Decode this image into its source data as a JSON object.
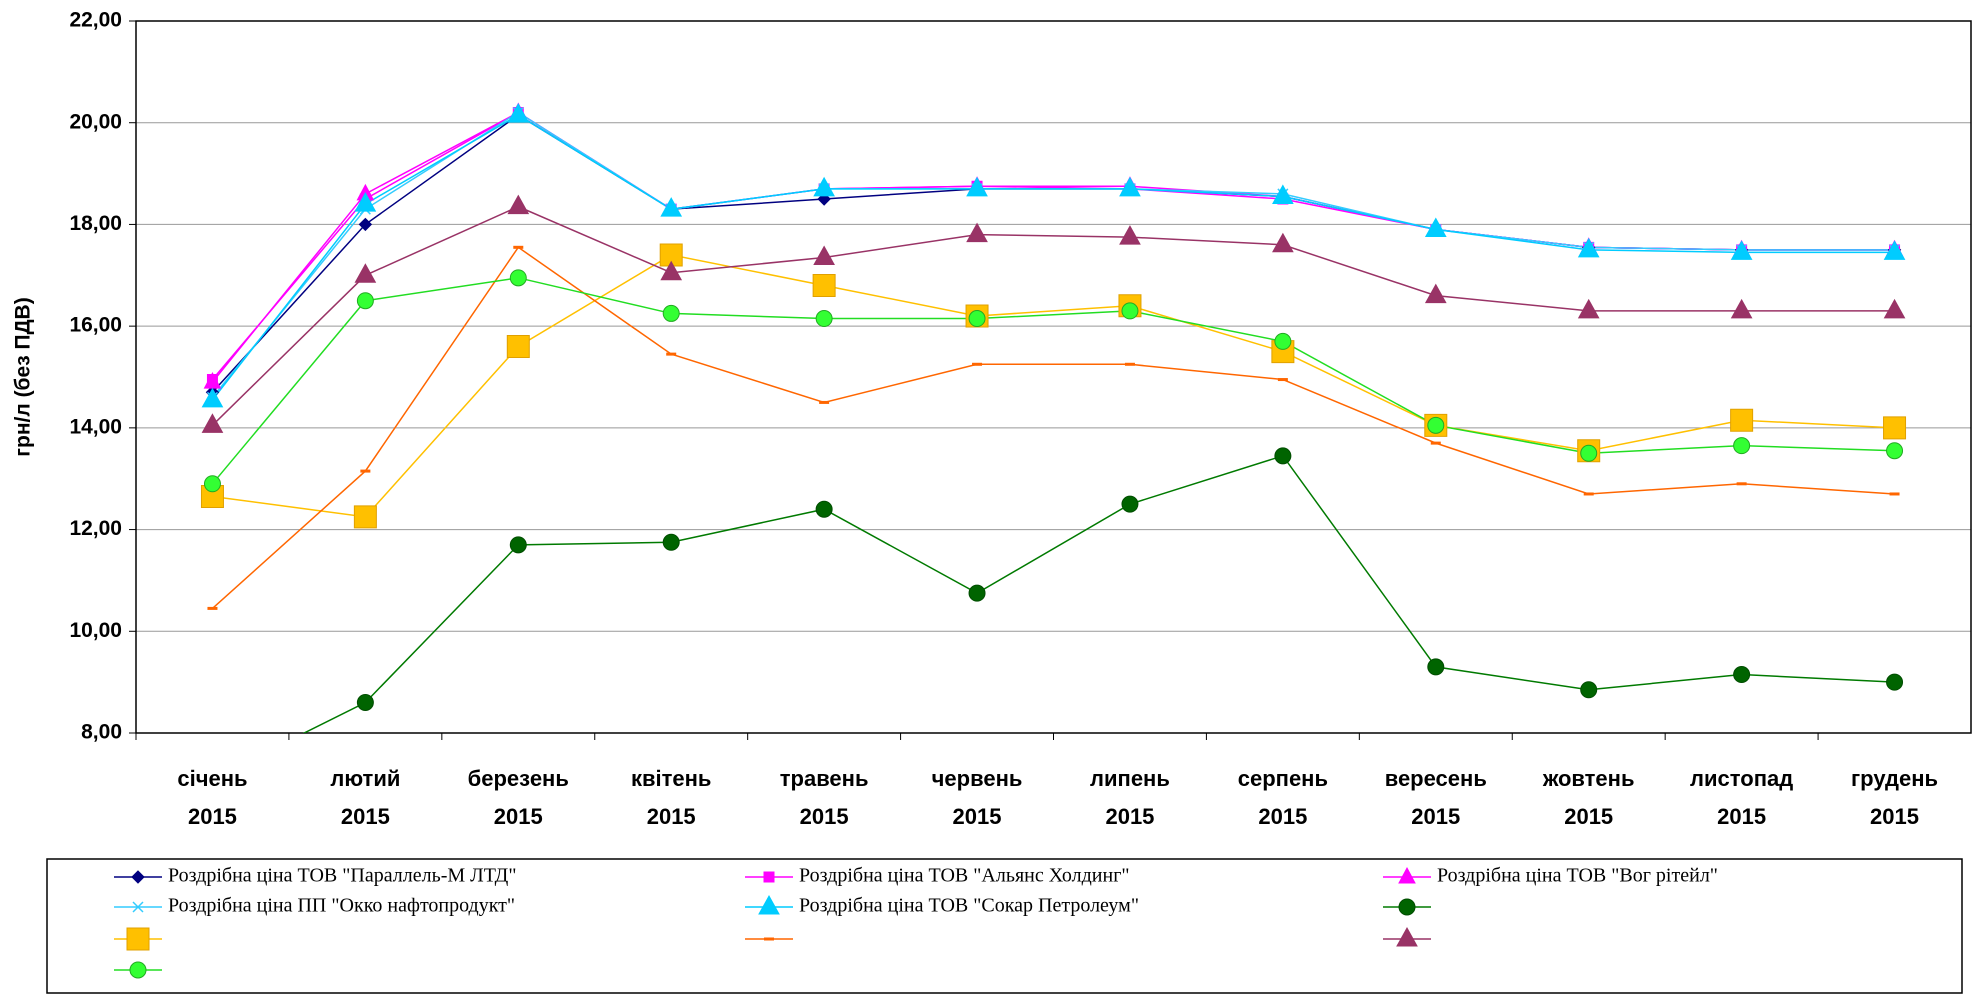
{
  "chart_data": {
    "type": "line",
    "y_label": "грн/л (без ПДВ)",
    "categories": [
      "січень 2015",
      "лютий 2015",
      "березень 2015",
      "квітень 2015",
      "травень 2015",
      "червень 2015",
      "липень 2015",
      "серпень 2015",
      "вересень 2015",
      "жовтень 2015",
      "листопад 2015",
      "грудень 2015"
    ],
    "ylim": [
      8,
      22
    ],
    "yticks": [
      {
        "value": 8,
        "label": "8,00"
      },
      {
        "value": 10,
        "label": "10,00"
      },
      {
        "value": 12,
        "label": "12,00"
      },
      {
        "value": 14,
        "label": "14,00"
      },
      {
        "value": 16,
        "label": "16,00"
      },
      {
        "value": 18,
        "label": "18,00"
      },
      {
        "value": 20,
        "label": "20,00"
      },
      {
        "value": 22,
        "label": "22,00"
      }
    ],
    "grid": true,
    "legend": "bottom",
    "series": [
      {
        "name": "Роздрібна ціна ТОВ \"Параллель-М ЛТД\"",
        "color": "#000080",
        "marker": "diamond",
        "values": [
          14.7,
          18.0,
          20.15,
          18.3,
          18.5,
          18.7,
          18.7,
          18.55,
          17.9,
          17.55,
          17.5,
          17.5
        ]
      },
      {
        "name": "Роздрібна ціна ТОВ \"Альянс Холдинг\"",
        "color": "#ff00ff",
        "marker": "square",
        "values": [
          14.95,
          18.5,
          20.2,
          18.3,
          18.7,
          18.75,
          18.7,
          18.5,
          17.9,
          17.55,
          17.5,
          17.5
        ]
      },
      {
        "name": "Роздрібна ціна  ТОВ \"Вог рітейл\"",
        "color": "#ff00ff",
        "marker": "triangle",
        "values": [
          14.9,
          18.6,
          20.2,
          18.3,
          18.7,
          18.75,
          18.75,
          18.55,
          17.9,
          17.55,
          17.5,
          17.5
        ]
      },
      {
        "name": "Роздрібна ціна ПП \"Окко нафтопродукт\"",
        "color": "#33ccff",
        "marker": "x",
        "values": [
          14.6,
          18.3,
          20.2,
          18.3,
          18.7,
          18.7,
          18.7,
          18.6,
          17.9,
          17.55,
          17.5,
          17.5
        ]
      },
      {
        "name": "Роздрібна ціна ТОВ \"Сокар Петролеум\"",
        "color": "#00ccff",
        "marker": "triangle-big",
        "values": [
          14.55,
          18.4,
          20.15,
          18.3,
          18.7,
          18.7,
          18.7,
          18.55,
          17.9,
          17.5,
          17.45,
          17.45
        ]
      },
      {
        "color": "#007a00",
        "marker": "circle",
        "values": [
          7.1,
          8.6,
          11.7,
          11.75,
          12.4,
          10.75,
          12.5,
          13.45,
          9.3,
          8.85,
          9.15,
          9.0
        ]
      },
      {
        "color": "#ffc000",
        "marker": "square-big",
        "values": [
          12.65,
          12.25,
          15.6,
          17.4,
          16.8,
          16.2,
          16.4,
          15.5,
          14.05,
          13.55,
          14.15,
          14.0
        ]
      },
      {
        "color": "#ff6600",
        "marker": "dash",
        "values": [
          10.45,
          13.15,
          17.55,
          15.45,
          14.5,
          15.25,
          15.25,
          14.95,
          13.7,
          12.7,
          12.9,
          12.7
        ]
      },
      {
        "color": "#993366",
        "marker": "triangle-big",
        "values": [
          14.05,
          17.0,
          18.35,
          17.05,
          17.35,
          17.8,
          17.75,
          17.6,
          16.6,
          16.3,
          16.3,
          16.3
        ]
      },
      {
        "color": "#22dd22",
        "marker": "circle-light",
        "values": [
          12.9,
          16.5,
          16.95,
          16.25,
          16.15,
          16.15,
          16.3,
          15.7,
          14.05,
          13.5,
          13.65,
          13.55
        ]
      }
    ]
  }
}
